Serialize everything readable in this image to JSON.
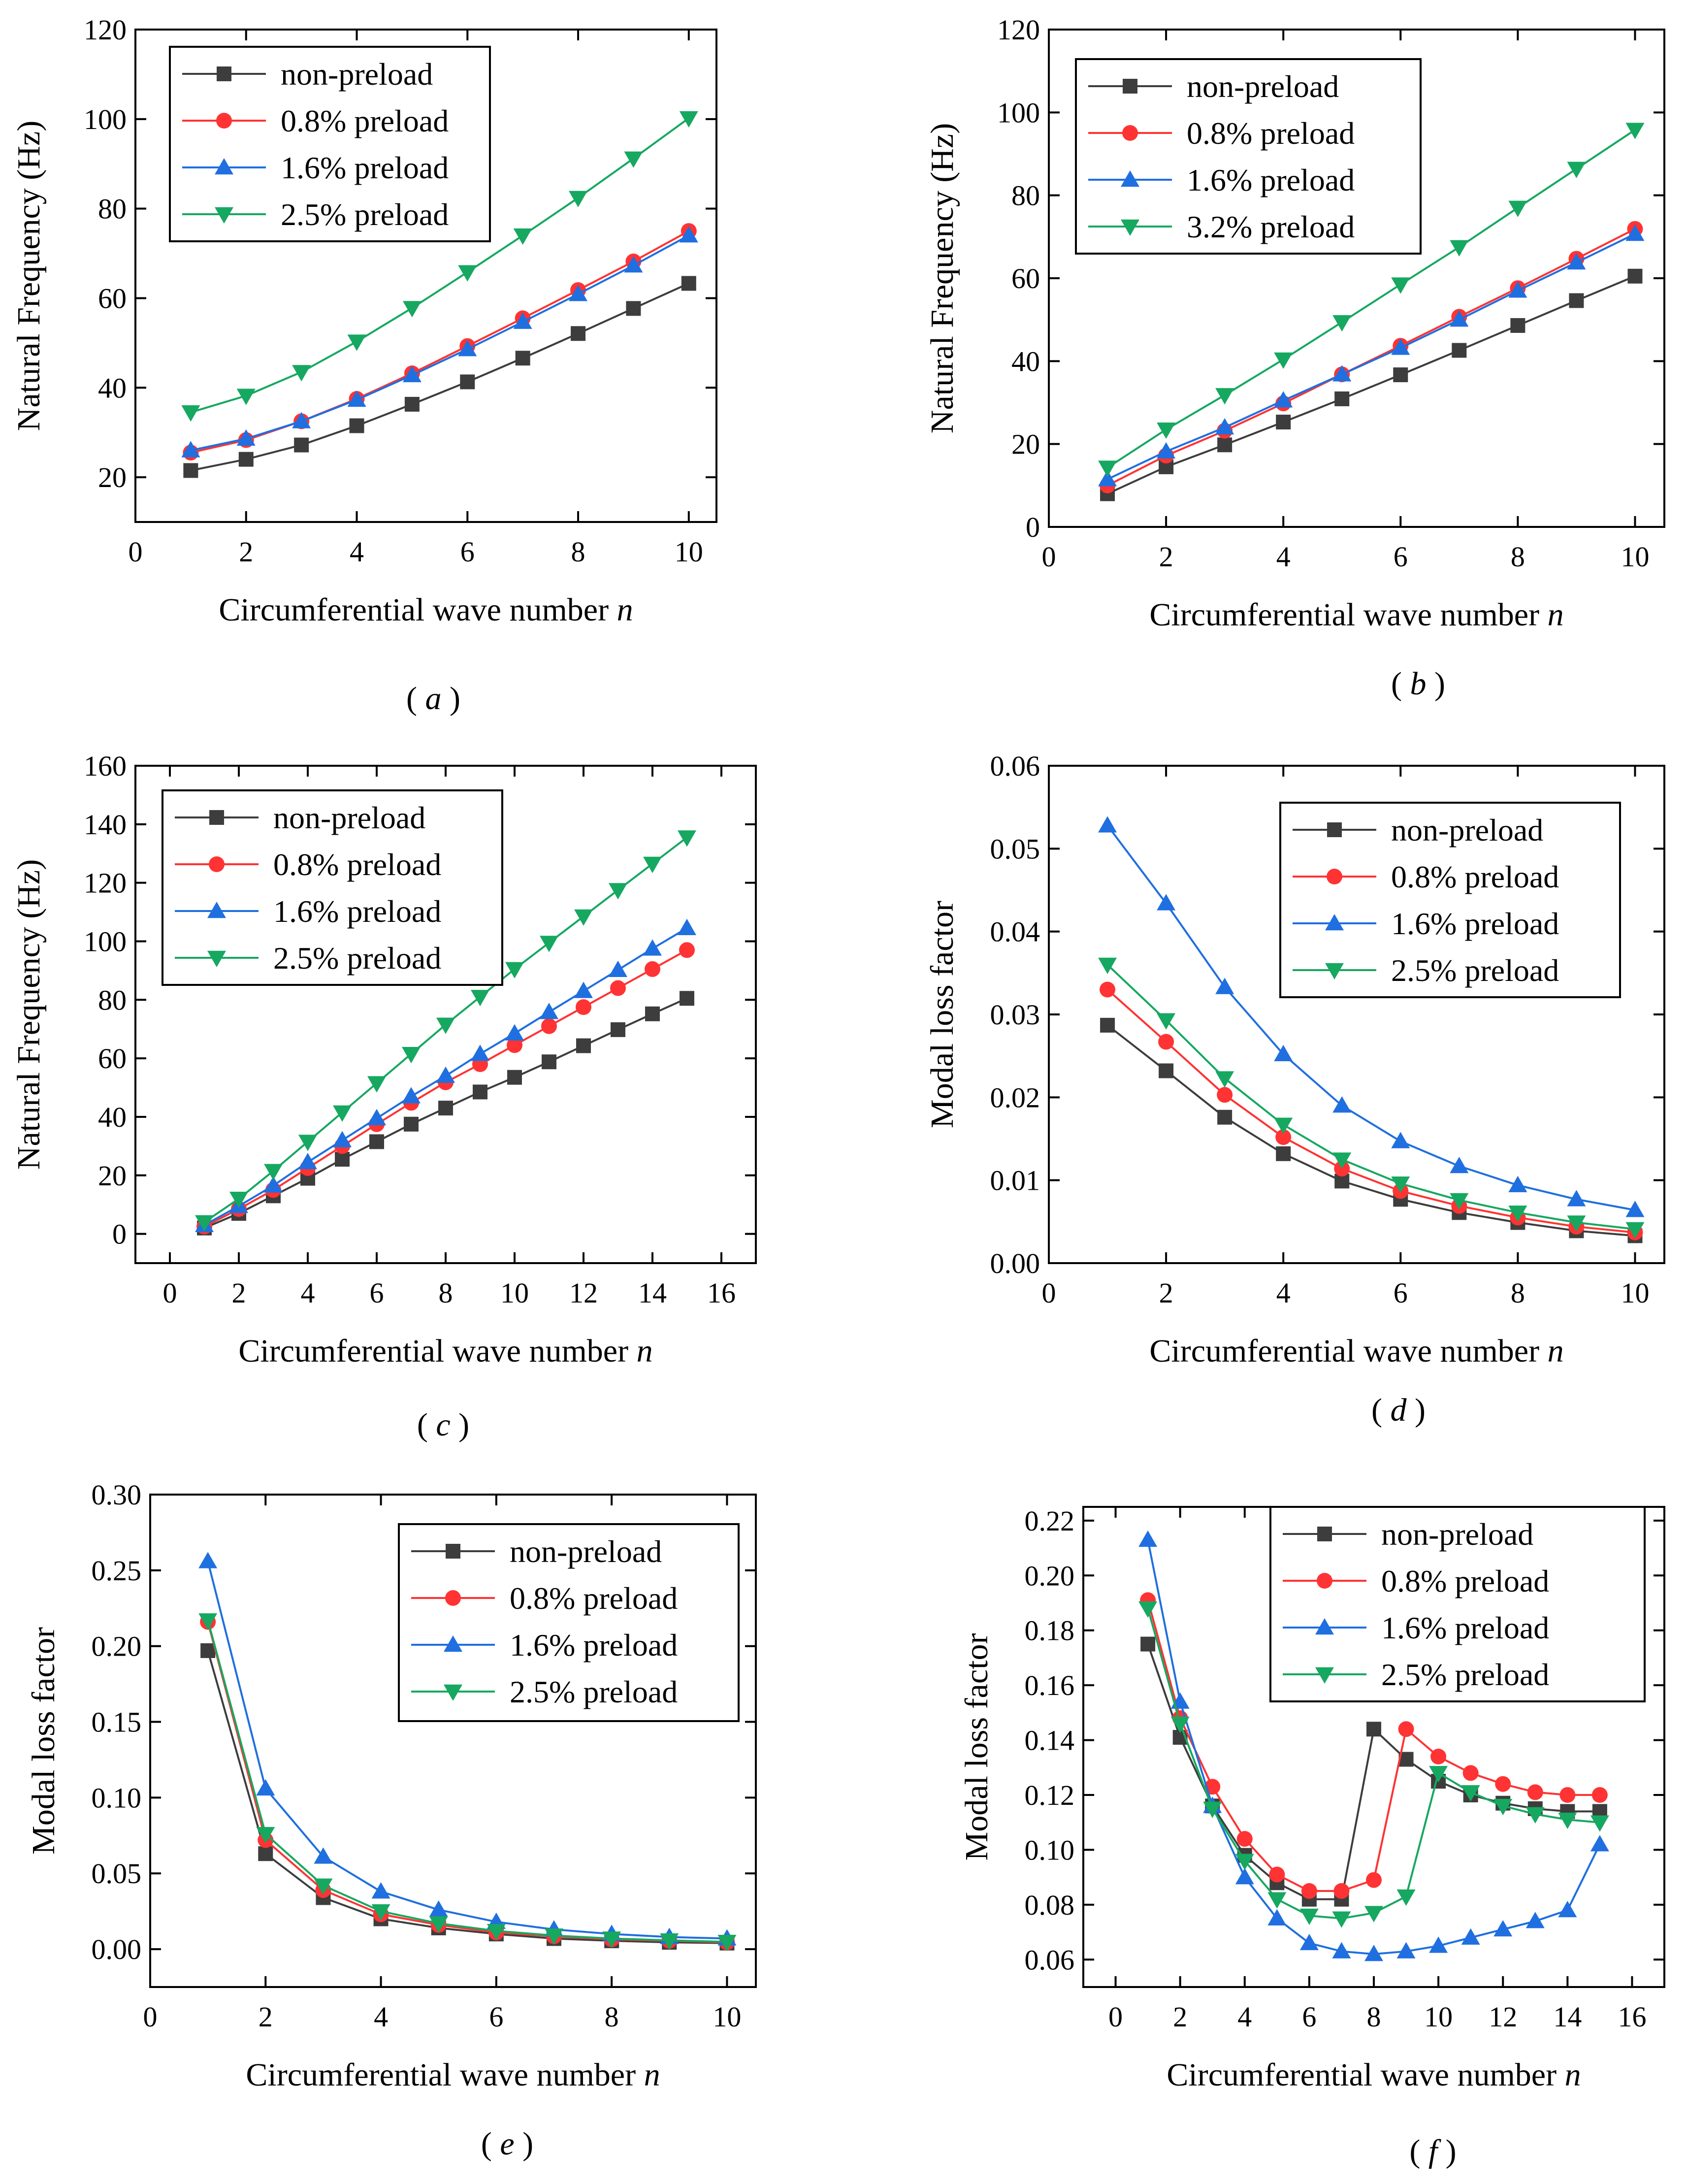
{
  "figure": {
    "legend_labels_common": [
      "non-preload",
      "0.8% preload",
      "1.6% preload"
    ],
    "colors": {
      "non-preload": "#3d3d3d",
      "0.8% preload": "#ff3333",
      "1.6% preload": "#1f6fe0",
      "2.5% preload": "#16a860",
      "3.2% preload": "#16a860"
    },
    "markers": {
      "non-preload": "square",
      "0.8% preload": "circle",
      "1.6% preload": "triangle-up",
      "2.5% preload": "triangle-down",
      "3.2% preload": "triangle-down"
    }
  },
  "chart_data": [
    {
      "id": "a",
      "panel_label": "a",
      "type": "line",
      "xlabel": "Circumferential wave number",
      "xlabel_var": "n",
      "ylabel": "Natural Frequency (Hz)",
      "xlim": [
        0,
        10.5
      ],
      "ylim": [
        10,
        120
      ],
      "xticks": [
        0,
        2,
        4,
        6,
        8,
        10
      ],
      "yticks": [
        20,
        40,
        60,
        80,
        100,
        120
      ],
      "ytick_labels": [
        "20",
        "40",
        "60",
        "80",
        "100",
        "120"
      ],
      "legend_position": "top-left",
      "series": [
        {
          "name": "non-preload",
          "x": [
            1,
            2,
            3,
            4,
            5,
            6,
            7,
            8,
            9,
            10
          ],
          "values": [
            21.5,
            24,
            27.2,
            31.5,
            36.3,
            41.3,
            46.6,
            52.1,
            57.7,
            63.3
          ]
        },
        {
          "name": "0.8% preload",
          "x": [
            1,
            2,
            3,
            4,
            5,
            6,
            7,
            8,
            9,
            10
          ],
          "values": [
            25.5,
            28.3,
            32.5,
            37.5,
            43.2,
            49.3,
            55.5,
            61.8,
            68.2,
            75
          ]
        },
        {
          "name": "1.6% preload",
          "x": [
            1,
            2,
            3,
            4,
            5,
            6,
            7,
            8,
            9,
            10
          ],
          "values": [
            26,
            28.6,
            32.5,
            37.3,
            42.8,
            48.6,
            54.7,
            60.9,
            67.3,
            74
          ]
        },
        {
          "name": "2.5% preload",
          "x": [
            1,
            2,
            3,
            4,
            5,
            6,
            7,
            8,
            9,
            10
          ],
          "values": [
            34.5,
            38.2,
            43.5,
            50.3,
            57.8,
            65.8,
            74,
            82.4,
            91.2,
            100.2
          ]
        }
      ]
    },
    {
      "id": "b",
      "panel_label": "b",
      "type": "line",
      "xlabel": "Circumferential wave number",
      "xlabel_var": "n",
      "ylabel": "Natural Frequency (Hz)",
      "xlim": [
        0,
        10.5
      ],
      "ylim": [
        0,
        120
      ],
      "xticks": [
        0,
        2,
        4,
        6,
        8,
        10
      ],
      "yticks": [
        0,
        20,
        40,
        60,
        80,
        100,
        120
      ],
      "ytick_labels": [
        "0",
        "20",
        "40",
        "60",
        "80",
        "100",
        "120"
      ],
      "legend_position": "top-left",
      "series": [
        {
          "name": "non-preload",
          "x": [
            1,
            2,
            3,
            4,
            5,
            6,
            7,
            8,
            9,
            10
          ],
          "values": [
            8,
            14.5,
            19.8,
            25.3,
            30.9,
            36.7,
            42.6,
            48.6,
            54.6,
            60.5
          ]
        },
        {
          "name": "0.8% preload",
          "x": [
            1,
            2,
            3,
            4,
            5,
            6,
            7,
            8,
            9,
            10
          ],
          "values": [
            10,
            17.2,
            23.2,
            29.8,
            36.8,
            43.7,
            50.7,
            57.6,
            64.7,
            71.9
          ]
        },
        {
          "name": "1.6% preload",
          "x": [
            1,
            2,
            3,
            4,
            5,
            6,
            7,
            8,
            9,
            10
          ],
          "values": [
            11.5,
            18.2,
            24,
            30.5,
            36.8,
            43.2,
            50,
            57,
            63.8,
            70.7
          ]
        },
        {
          "name": "3.2% preload",
          "x": [
            1,
            2,
            3,
            4,
            5,
            6,
            7,
            8,
            9,
            10
          ],
          "values": [
            14.3,
            23.5,
            31.8,
            40.4,
            49.4,
            58.5,
            67.5,
            77,
            86.4,
            95.8
          ]
        }
      ]
    },
    {
      "id": "c",
      "panel_label": "c",
      "type": "line",
      "xlabel": "Circumferential wave number",
      "xlabel_var": "n",
      "ylabel": "Natural Frequency (Hz)",
      "xlim": [
        -1,
        17
      ],
      "ylim": [
        -10,
        160
      ],
      "xticks": [
        0,
        2,
        4,
        6,
        8,
        10,
        12,
        14,
        16
      ],
      "yticks": [
        0,
        20,
        40,
        60,
        80,
        100,
        120,
        140,
        160
      ],
      "ytick_labels": [
        "0",
        "20",
        "40",
        "60",
        "80",
        "100",
        "120",
        "140",
        "160"
      ],
      "legend_position": "top-left",
      "series": [
        {
          "name": "non-preload",
          "x": [
            1,
            2,
            3,
            4,
            5,
            6,
            7,
            8,
            9,
            10,
            11,
            12,
            13,
            14,
            15
          ],
          "values": [
            2,
            7,
            13,
            19,
            25.5,
            31.5,
            37.5,
            43,
            48.5,
            53.5,
            58.8,
            64.3,
            69.8,
            75.2,
            80.5
          ]
        },
        {
          "name": "0.8% preload",
          "x": [
            1,
            2,
            3,
            4,
            5,
            6,
            7,
            8,
            9,
            10,
            11,
            12,
            13,
            14,
            15
          ],
          "values": [
            2.5,
            8.5,
            15,
            22.5,
            30,
            37.5,
            44.8,
            51.8,
            58,
            64.5,
            71,
            77.5,
            84,
            90.5,
            97
          ]
        },
        {
          "name": "1.6% preload",
          "x": [
            1,
            2,
            3,
            4,
            5,
            6,
            7,
            8,
            9,
            10,
            11,
            12,
            13,
            14,
            15
          ],
          "values": [
            3,
            9.5,
            16.5,
            24.5,
            32,
            39.5,
            47,
            54,
            61.5,
            68.5,
            75.8,
            83,
            90.2,
            97.5,
            104.5
          ]
        },
        {
          "name": "2.5% preload",
          "x": [
            1,
            2,
            3,
            4,
            5,
            6,
            7,
            8,
            9,
            10,
            11,
            12,
            13,
            14,
            15
          ],
          "values": [
            4,
            12,
            21.5,
            31.5,
            41.5,
            51.5,
            61.5,
            71.5,
            81,
            90.5,
            99.5,
            108.5,
            117.5,
            126.5,
            135.5
          ]
        }
      ]
    },
    {
      "id": "d",
      "panel_label": "d",
      "type": "line",
      "xlabel": "Circumferential wave number",
      "xlabel_var": "n",
      "ylabel": "Modal loss factor",
      "xlim": [
        0,
        10.5
      ],
      "ylim": [
        0,
        0.06
      ],
      "xticks": [
        0,
        2,
        4,
        6,
        8,
        10
      ],
      "yticks": [
        0,
        0.01,
        0.02,
        0.03,
        0.04,
        0.05,
        0.06
      ],
      "ytick_labels": [
        "0.00",
        "0.01",
        "0.02",
        "0.03",
        "0.04",
        "0.05",
        "0.06"
      ],
      "legend_position": "top-right",
      "series": [
        {
          "name": "non-preload",
          "x": [
            1,
            2,
            3,
            4,
            5,
            6,
            7,
            8,
            9,
            10
          ],
          "values": [
            0.0287,
            0.0232,
            0.0176,
            0.0132,
            0.0099,
            0.0077,
            0.0061,
            0.0049,
            0.0039,
            0.0033
          ]
        },
        {
          "name": "0.8% preload",
          "x": [
            1,
            2,
            3,
            4,
            5,
            6,
            7,
            8,
            9,
            10
          ],
          "values": [
            0.033,
            0.0267,
            0.0203,
            0.0152,
            0.0114,
            0.0087,
            0.0069,
            0.0055,
            0.0044,
            0.0037
          ]
        },
        {
          "name": "1.6% preload",
          "x": [
            1,
            2,
            3,
            4,
            5,
            6,
            7,
            8,
            9,
            10
          ],
          "values": [
            0.0528,
            0.0434,
            0.0333,
            0.0252,
            0.019,
            0.0147,
            0.0117,
            0.0094,
            0.0077,
            0.0064
          ]
        },
        {
          "name": "2.5% preload",
          "x": [
            1,
            2,
            3,
            4,
            5,
            6,
            7,
            8,
            9,
            10
          ],
          "values": [
            0.036,
            0.0293,
            0.0223,
            0.0167,
            0.0125,
            0.0096,
            0.0076,
            0.0061,
            0.0049,
            0.0041
          ]
        }
      ]
    },
    {
      "id": "e",
      "panel_label": "e",
      "type": "line",
      "xlabel": "Circumferential wave number",
      "xlabel_var": "n",
      "ylabel": "Modal loss factor",
      "xlim": [
        0,
        10.5
      ],
      "ylim": [
        -0.025,
        0.3
      ],
      "xticks": [
        0,
        2,
        4,
        6,
        8,
        10
      ],
      "yticks": [
        0,
        0.05,
        0.1,
        0.15,
        0.2,
        0.25,
        0.3
      ],
      "ytick_labels": [
        "0.00",
        "0.05",
        "0.10",
        "0.15",
        "0.20",
        "0.25",
        "0.30"
      ],
      "legend_position": "top-right",
      "series": [
        {
          "name": "non-preload",
          "x": [
            1,
            2,
            3,
            4,
            5,
            6,
            7,
            8,
            9,
            10
          ],
          "values": [
            0.197,
            0.063,
            0.034,
            0.02,
            0.014,
            0.01,
            0.007,
            0.0055,
            0.0045,
            0.004
          ]
        },
        {
          "name": "0.8% preload",
          "x": [
            1,
            2,
            3,
            4,
            5,
            6,
            7,
            8,
            9,
            10
          ],
          "values": [
            0.216,
            0.072,
            0.039,
            0.023,
            0.016,
            0.011,
            0.0085,
            0.0065,
            0.0055,
            0.0045
          ]
        },
        {
          "name": "1.6% preload",
          "x": [
            1,
            2,
            3,
            4,
            5,
            6,
            7,
            8,
            9,
            10
          ],
          "values": [
            0.256,
            0.106,
            0.061,
            0.038,
            0.026,
            0.018,
            0.013,
            0.01,
            0.008,
            0.007
          ]
        },
        {
          "name": "2.5% preload",
          "x": [
            1,
            2,
            3,
            4,
            5,
            6,
            7,
            8,
            9,
            10
          ],
          "values": [
            0.217,
            0.076,
            0.042,
            0.025,
            0.017,
            0.012,
            0.009,
            0.007,
            0.0058,
            0.0048
          ]
        }
      ]
    },
    {
      "id": "f",
      "panel_label": "f",
      "type": "line",
      "xlabel": "Circumferential wave number",
      "xlabel_var": "n",
      "ylabel": "Modal loss factor",
      "xlim": [
        -1,
        17
      ],
      "ylim": [
        0.05,
        0.225
      ],
      "xticks": [
        0,
        2,
        4,
        6,
        8,
        10,
        12,
        14,
        16
      ],
      "yticks": [
        0.06,
        0.08,
        0.1,
        0.12,
        0.14,
        0.16,
        0.18,
        0.2,
        0.22
      ],
      "ytick_labels": [
        "0.06",
        "0.08",
        "0.10",
        "0.12",
        "0.14",
        "0.16",
        "0.18",
        "0.20",
        "0.22"
      ],
      "legend_position": "top-right",
      "series": [
        {
          "name": "non-preload",
          "x": [
            1,
            2,
            3,
            4,
            5,
            6,
            7,
            8,
            9,
            10,
            11,
            12,
            13,
            14,
            15
          ],
          "values": [
            0.175,
            0.141,
            0.116,
            0.098,
            0.088,
            0.082,
            0.082,
            0.144,
            0.133,
            0.125,
            0.12,
            0.117,
            0.115,
            0.114,
            0.114
          ]
        },
        {
          "name": "0.8% preload",
          "x": [
            1,
            2,
            3,
            4,
            5,
            6,
            7,
            8,
            9,
            10,
            11,
            12,
            13,
            14,
            15
          ],
          "values": [
            0.191,
            0.148,
            0.123,
            0.104,
            0.091,
            0.085,
            0.085,
            0.089,
            0.144,
            0.134,
            0.128,
            0.124,
            0.121,
            0.12,
            0.12
          ]
        },
        {
          "name": "1.6% preload",
          "x": [
            1,
            2,
            3,
            4,
            5,
            6,
            7,
            8,
            9,
            10,
            11,
            12,
            13,
            14,
            15
          ],
          "values": [
            0.213,
            0.154,
            0.116,
            0.09,
            0.075,
            0.066,
            0.063,
            0.062,
            0.063,
            0.065,
            0.068,
            0.071,
            0.074,
            0.078,
            0.102
          ]
        },
        {
          "name": "2.5% preload",
          "x": [
            1,
            2,
            3,
            4,
            5,
            6,
            7,
            8,
            9,
            10,
            11,
            12,
            13,
            14,
            15
          ],
          "values": [
            0.188,
            0.146,
            0.115,
            0.096,
            0.082,
            0.076,
            0.075,
            0.077,
            0.083,
            0.128,
            0.121,
            0.116,
            0.113,
            0.111,
            0.11
          ]
        }
      ]
    }
  ]
}
